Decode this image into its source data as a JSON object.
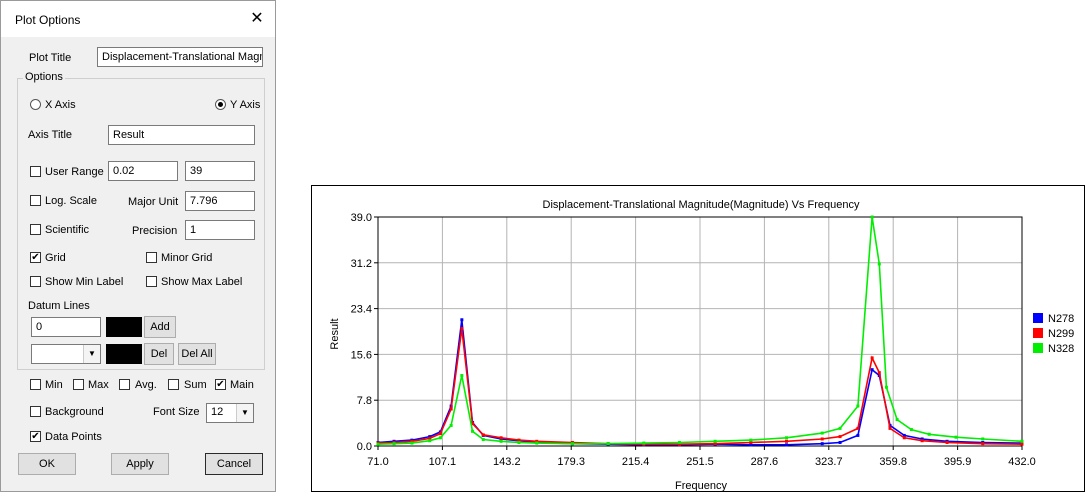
{
  "dialog": {
    "title": "Plot Options",
    "plot_title_label": "Plot Title",
    "plot_title_value": "Displacement-Translational Magni",
    "options_group": "Options",
    "x_axis_label": "X Axis",
    "y_axis_label": "Y Axis",
    "axis_title_label": "Axis Title",
    "axis_title_value": "Result",
    "user_range_label": "User Range",
    "range_min": "0.02",
    "range_max": "39",
    "log_scale_label": "Log. Scale",
    "major_unit_label": "Major Unit",
    "major_unit_value": "7.796",
    "scientific_label": "Scientific",
    "precision_label": "Precision",
    "precision_value": "1",
    "grid_label": "Grid",
    "minor_grid_label": "Minor Grid",
    "show_min_label": "Show Min Label",
    "show_max_label": "Show Max Label",
    "datum_lines_label": "Datum Lines",
    "datum_value": "0",
    "add_label": "Add",
    "del_label": "Del",
    "del_all_label": "Del All",
    "min_label": "Min",
    "max_label": "Max",
    "avg_label": "Avg.",
    "sum_label": "Sum",
    "main_label": "Main",
    "background_label": "Background",
    "font_size_label": "Font Size",
    "font_size_value": "12",
    "data_points_label": "Data Points",
    "ok_label": "OK",
    "apply_label": "Apply",
    "cancel_label": "Cancel",
    "checked_glyph": "✔"
  },
  "chart_data": {
    "type": "line",
    "title": "Displacement-Translational Magnitude(Magnitude) Vs Frequency",
    "xlabel": "Frequency",
    "ylabel": "Result",
    "xlim": [
      71.0,
      432.0
    ],
    "ylim": [
      0.0,
      39.0
    ],
    "x_ticks": [
      "71.0",
      "107.1",
      "143.2",
      "179.3",
      "215.4",
      "251.5",
      "287.6",
      "323.7",
      "359.8",
      "395.9",
      "432.0"
    ],
    "y_ticks": [
      "0.0",
      "7.8",
      "15.6",
      "23.4",
      "31.2",
      "39.0"
    ],
    "grid": true,
    "legend_position": "right",
    "series": [
      {
        "name": "N278",
        "color": "#0000ff",
        "points": [
          [
            71,
            0.6
          ],
          [
            80,
            0.8
          ],
          [
            90,
            1.0
          ],
          [
            100,
            1.6
          ],
          [
            106,
            2.4
          ],
          [
            112,
            6.8
          ],
          [
            118,
            21.5
          ],
          [
            124,
            4.0
          ],
          [
            130,
            1.8
          ],
          [
            140,
            1.2
          ],
          [
            150,
            0.9
          ],
          [
            160,
            0.6
          ],
          [
            180,
            0.4
          ],
          [
            200,
            0.3
          ],
          [
            220,
            0.2
          ],
          [
            240,
            0.2
          ],
          [
            260,
            0.3
          ],
          [
            280,
            0.2
          ],
          [
            300,
            0.2
          ],
          [
            320,
            0.4
          ],
          [
            330,
            0.6
          ],
          [
            340,
            1.8
          ],
          [
            348,
            13.0
          ],
          [
            352,
            12.0
          ],
          [
            358,
            3.5
          ],
          [
            366,
            1.8
          ],
          [
            376,
            1.2
          ],
          [
            390,
            0.8
          ],
          [
            410,
            0.6
          ],
          [
            432,
            0.5
          ]
        ]
      },
      {
        "name": "N299",
        "color": "#ff0000",
        "points": [
          [
            71,
            0.5
          ],
          [
            80,
            0.6
          ],
          [
            90,
            0.8
          ],
          [
            100,
            1.3
          ],
          [
            106,
            2.1
          ],
          [
            112,
            6.3
          ],
          [
            118,
            20.0
          ],
          [
            124,
            3.8
          ],
          [
            130,
            1.9
          ],
          [
            140,
            1.4
          ],
          [
            150,
            1.0
          ],
          [
            160,
            0.8
          ],
          [
            180,
            0.6
          ],
          [
            200,
            0.4
          ],
          [
            220,
            0.3
          ],
          [
            240,
            0.3
          ],
          [
            260,
            0.4
          ],
          [
            280,
            0.6
          ],
          [
            300,
            0.8
          ],
          [
            320,
            1.2
          ],
          [
            330,
            1.6
          ],
          [
            340,
            3.0
          ],
          [
            348,
            15.0
          ],
          [
            352,
            12.5
          ],
          [
            358,
            3.0
          ],
          [
            366,
            1.4
          ],
          [
            376,
            0.9
          ],
          [
            390,
            0.6
          ],
          [
            410,
            0.4
          ],
          [
            432,
            0.3
          ]
        ]
      },
      {
        "name": "N328",
        "color": "#00ee00",
        "points": [
          [
            71,
            0.3
          ],
          [
            80,
            0.4
          ],
          [
            90,
            0.5
          ],
          [
            100,
            0.9
          ],
          [
            106,
            1.4
          ],
          [
            112,
            3.5
          ],
          [
            118,
            12.0
          ],
          [
            124,
            2.5
          ],
          [
            130,
            1.1
          ],
          [
            140,
            0.8
          ],
          [
            150,
            0.6
          ],
          [
            160,
            0.5
          ],
          [
            180,
            0.4
          ],
          [
            200,
            0.4
          ],
          [
            220,
            0.5
          ],
          [
            240,
            0.6
          ],
          [
            260,
            0.8
          ],
          [
            280,
            1.0
          ],
          [
            300,
            1.4
          ],
          [
            320,
            2.2
          ],
          [
            330,
            3.0
          ],
          [
            340,
            6.8
          ],
          [
            348,
            39.0
          ],
          [
            352,
            31.0
          ],
          [
            356,
            10.0
          ],
          [
            362,
            4.5
          ],
          [
            370,
            2.8
          ],
          [
            380,
            2.0
          ],
          [
            395,
            1.5
          ],
          [
            410,
            1.2
          ],
          [
            432,
            0.8
          ]
        ]
      }
    ]
  }
}
